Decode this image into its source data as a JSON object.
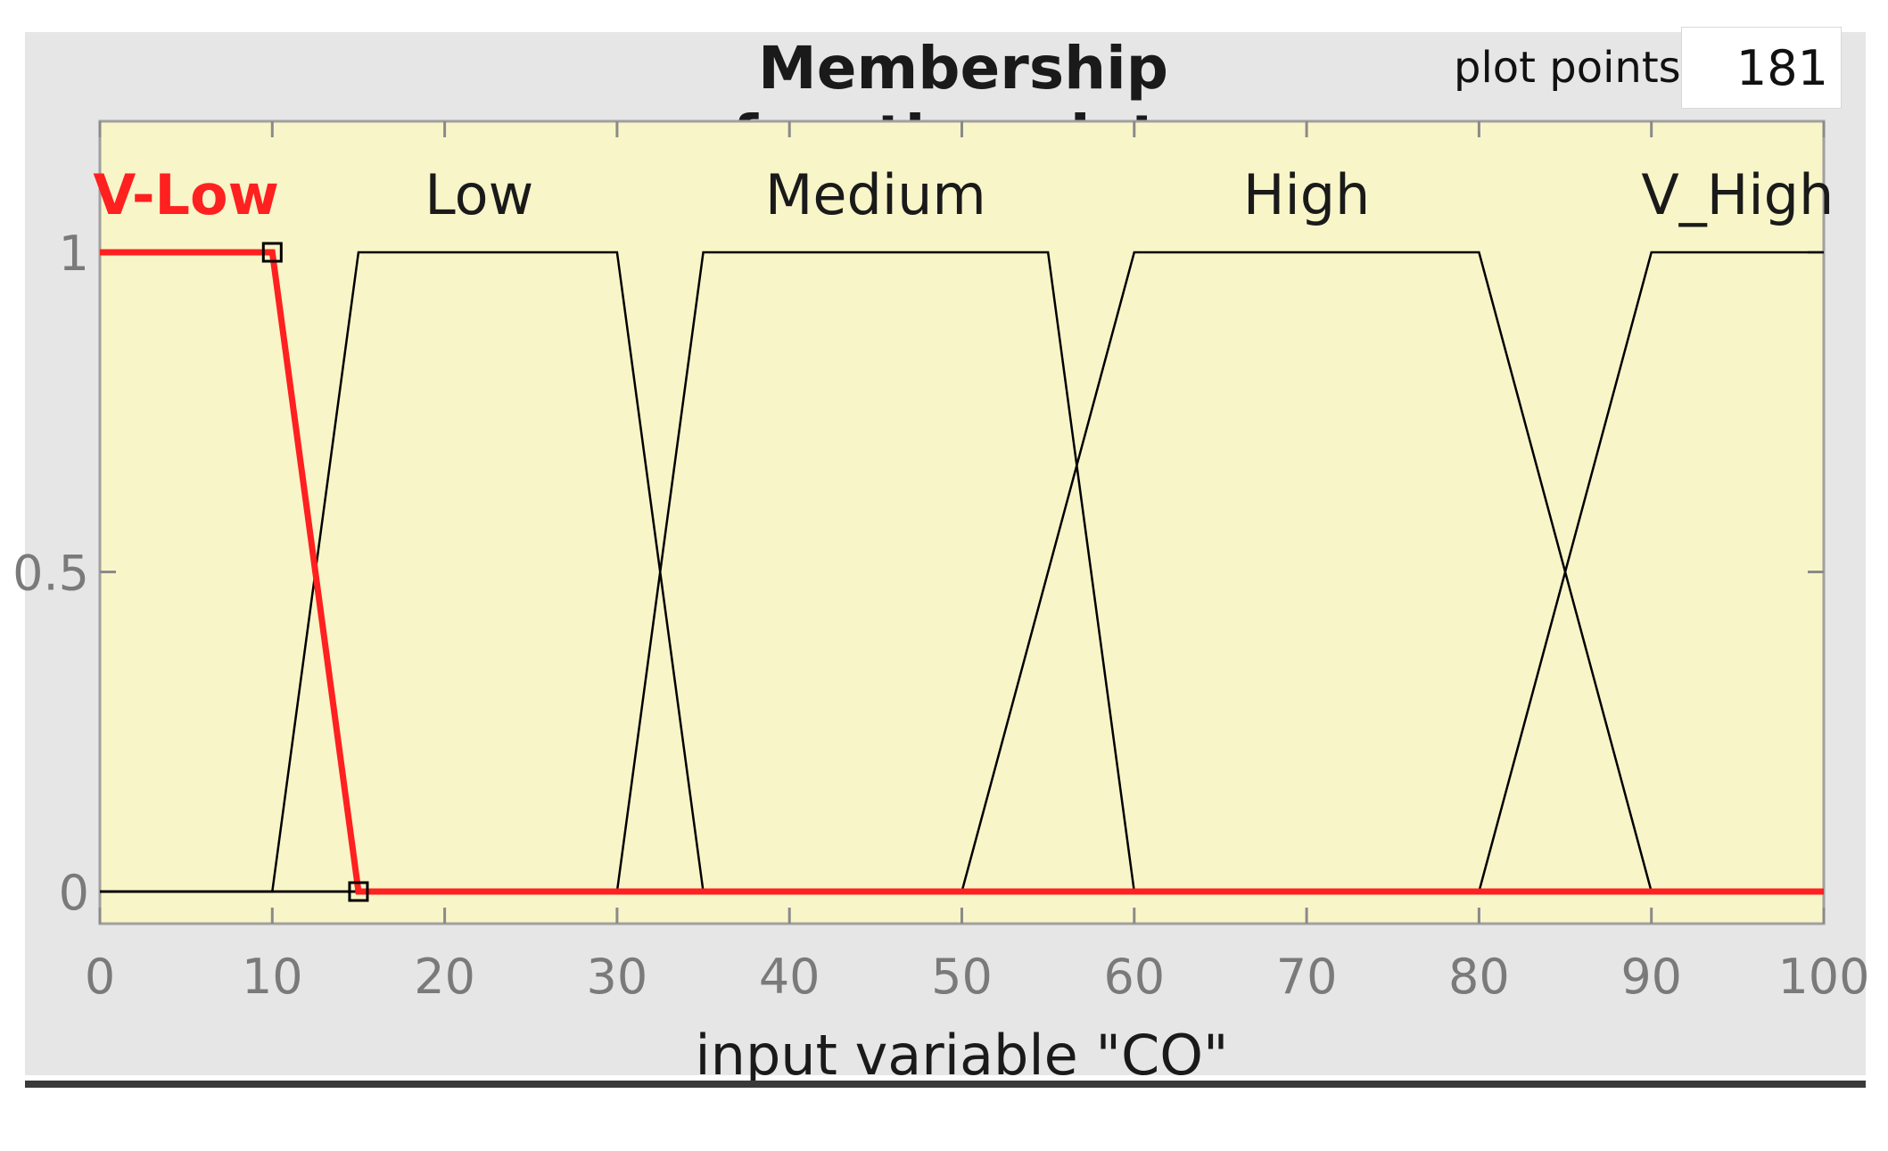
{
  "title": "Membership function plots",
  "plot_points": {
    "label": "plot points:",
    "value": "181"
  },
  "chart_data": {
    "type": "line",
    "title": "Membership function plots",
    "xlabel": "input variable \"CO\"",
    "ylabel": "",
    "xlim": [
      0,
      100
    ],
    "ylim": [
      0,
      1.2
    ],
    "xticks": [
      0,
      10,
      20,
      30,
      40,
      50,
      60,
      70,
      80,
      90,
      100
    ],
    "xtick_labels": [
      "0",
      "10",
      "20",
      "30",
      "40",
      "50",
      "60",
      "70",
      "80",
      "90",
      "100"
    ],
    "yticks": [
      0,
      0.5,
      1
    ],
    "ytick_labels": [
      "0",
      "0.5",
      "1"
    ],
    "grid": false,
    "plot_background": "#f8f5c8",
    "series": [
      {
        "name": "V-Low",
        "selected": true,
        "color": "#ff2020",
        "x": [
          0,
          10,
          15,
          100
        ],
        "y": [
          1,
          1,
          0,
          0
        ]
      },
      {
        "name": "Low",
        "selected": false,
        "color": "#000000",
        "x": [
          0,
          10,
          15,
          30,
          35,
          100
        ],
        "y": [
          0,
          0,
          1,
          1,
          0,
          0
        ]
      },
      {
        "name": "Medium",
        "selected": false,
        "color": "#000000",
        "x": [
          0,
          30,
          35,
          55,
          60,
          100
        ],
        "y": [
          0,
          0,
          1,
          1,
          0,
          0
        ]
      },
      {
        "name": "High",
        "selected": false,
        "color": "#000000",
        "x": [
          0,
          50,
          60,
          80,
          90,
          100
        ],
        "y": [
          0,
          0,
          1,
          1,
          0,
          0
        ]
      },
      {
        "name": "V_High",
        "selected": false,
        "color": "#000000",
        "x": [
          0,
          80,
          90,
          100
        ],
        "y": [
          0,
          0,
          1,
          1
        ]
      }
    ],
    "series_label_x": [
      5,
      22,
      45,
      70,
      95
    ]
  }
}
